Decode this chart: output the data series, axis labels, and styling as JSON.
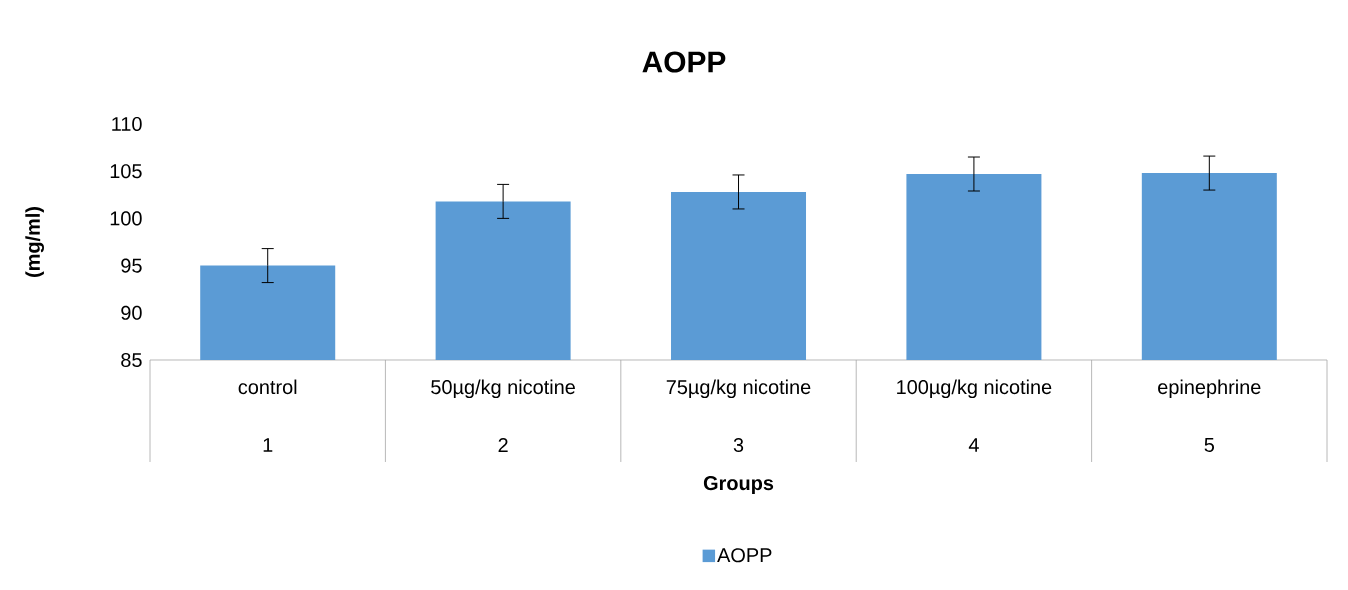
{
  "chart_data": {
    "type": "bar",
    "title": "AOPP",
    "xlabel": "Groups",
    "ylabel": "(mg/ml)",
    "categories": [
      "control",
      "50µg/kg   nicotine",
      "75µg/kg   nicotine",
      "100µg/kg nicotine",
      "epinephrine"
    ],
    "series": [
      {
        "name": "AOPP",
        "color": "#5b9bd5",
        "values": [
          95.0,
          101.8,
          102.8,
          104.7,
          104.8
        ],
        "errors": [
          1.8,
          1.8,
          1.8,
          1.8,
          1.8
        ]
      }
    ],
    "annotations": [
      "1",
      "2",
      "3",
      "4",
      "5"
    ],
    "ylim": [
      85,
      110
    ],
    "yticks": [
      85,
      90,
      95,
      100,
      105,
      110
    ],
    "legend": "bottom"
  }
}
